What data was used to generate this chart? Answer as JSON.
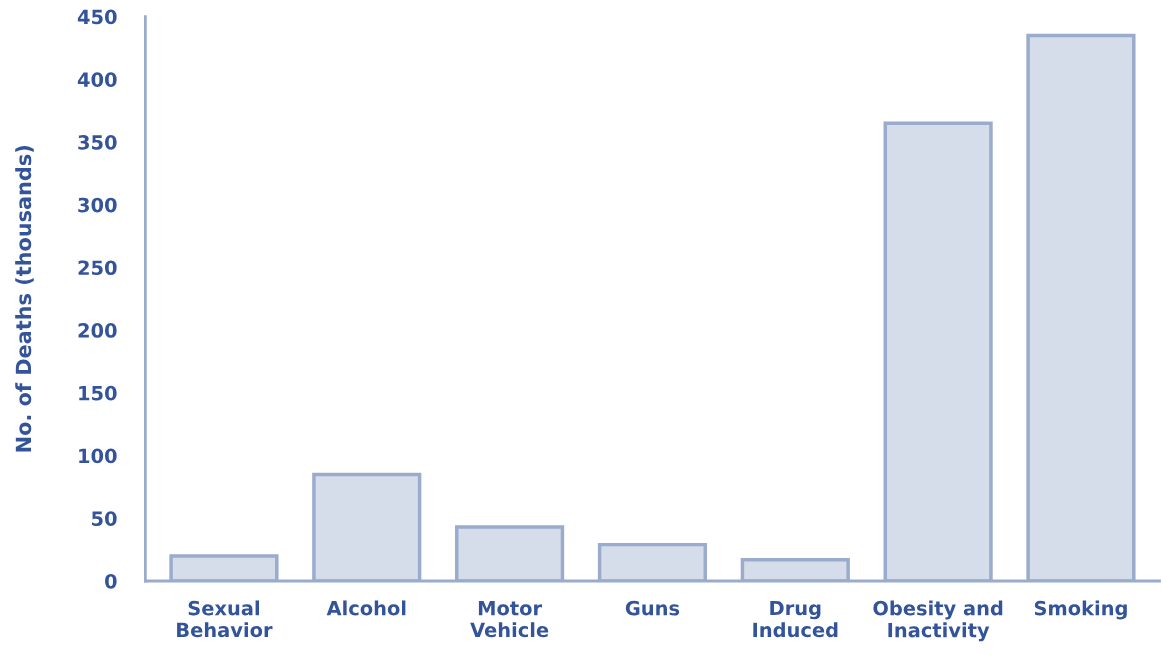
{
  "chart_data": {
    "type": "bar",
    "ylabel": "No. of Deaths (thousands)",
    "categories": [
      "Sexual\nBehavior",
      "Alcohol",
      "Motor\nVehicle",
      "Guns",
      "Drug\nInduced",
      "Obesity and\nInactivity",
      "Smoking"
    ],
    "values": [
      20,
      85,
      43,
      29,
      17,
      365,
      435
    ],
    "color": "#d6ddea",
    "ylim": [
      0,
      450
    ],
    "yticks": [
      0,
      50,
      100,
      150,
      200,
      250,
      300,
      350,
      400,
      450
    ],
    "grid": false
  }
}
